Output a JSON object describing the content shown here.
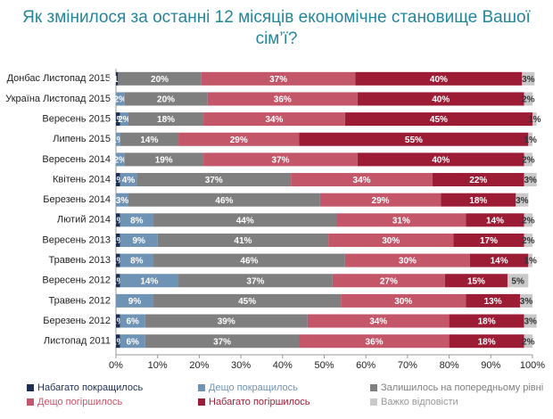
{
  "chart_data": {
    "type": "stacked-barh",
    "title": "Як змінилося за останні 12 місяців економічне становище Вашої сім’ї?",
    "categories": [
      "Донбас Листопад 2015",
      "Україна Листопад 2015",
      "Вересень 2015",
      "Липень 2015",
      "Вересень 2014",
      "Квітень 2014",
      "Березень 2014",
      "Лютий 2014",
      "Вересень 2013",
      "Травень 2013",
      "Вересень 2012",
      "Травень 2012",
      "Березень 2012",
      "Листопад 2011"
    ],
    "series": [
      {
        "name": "Набагато покращилось",
        "color": "#1c2f52",
        "values": [
          0.5,
          null,
          1,
          null,
          null,
          1,
          null,
          1,
          1,
          1,
          1,
          null,
          1,
          1
        ],
        "value_labels": [
          "<1%",
          null,
          "1%",
          null,
          null,
          "1%",
          null,
          "1%",
          "1%",
          "1%",
          "1%",
          null,
          "1%",
          "1%"
        ]
      },
      {
        "name": "Дещо покращилось",
        "color": "#6f93b5",
        "values": [
          null,
          2,
          2,
          1,
          2,
          4,
          3,
          8,
          9,
          8,
          14,
          9,
          6,
          6
        ],
        "value_labels": [
          null,
          "2%",
          "2%",
          "1%",
          "2%",
          "4%",
          "3%",
          "8%",
          "9%",
          "8%",
          "14%",
          "9%",
          "6%",
          "6%"
        ]
      },
      {
        "name": "Залишилось на попередньому рівні",
        "color": "#7f7f7f",
        "values": [
          20,
          20,
          18,
          14,
          19,
          37,
          46,
          44,
          41,
          46,
          37,
          45,
          39,
          37
        ],
        "value_labels": [
          "20%",
          "20%",
          "18%",
          "14%",
          "19%",
          "37%",
          "46%",
          "44%",
          "41%",
          "46%",
          "37%",
          "45%",
          "39%",
          "37%"
        ]
      },
      {
        "name": "Дещо погіршилось",
        "color": "#c4566a",
        "values": [
          37,
          36,
          34,
          29,
          37,
          34,
          29,
          31,
          30,
          30,
          27,
          30,
          34,
          36
        ],
        "value_labels": [
          "37%",
          "36%",
          "34%",
          "29%",
          "37%",
          "34%",
          "29%",
          "31%",
          "30%",
          "30%",
          "27%",
          "30%",
          "34%",
          "36%"
        ]
      },
      {
        "name": "Набагато погіршилось",
        "color": "#9c1c36",
        "values": [
          40,
          40,
          45,
          55,
          40,
          22,
          18,
          14,
          17,
          14,
          15,
          13,
          18,
          18
        ],
        "value_labels": [
          "40%",
          "40%",
          "45%",
          "55%",
          "40%",
          "22%",
          "18%",
          "14%",
          "17%",
          "14%",
          "15%",
          "13%",
          "18%",
          "18%"
        ]
      },
      {
        "name": "Важко відповісти",
        "color": "#c9c9c9",
        "values": [
          3,
          2,
          1,
          1,
          2,
          3,
          3,
          2,
          2,
          1,
          5,
          3,
          3,
          2
        ],
        "value_labels": [
          "3%",
          "2%",
          "1%",
          "1%",
          "2%",
          "3%",
          "3%",
          "2%",
          "2%",
          "1%",
          "5%",
          "3%",
          "3%",
          "2%"
        ]
      }
    ],
    "xlim": [
      0,
      100
    ],
    "xticks": [
      {
        "value": 0,
        "label": "0%"
      },
      {
        "value": 10,
        "label": "10%"
      },
      {
        "value": 20,
        "label": "20%"
      },
      {
        "value": 30,
        "label": "30%"
      },
      {
        "value": 40,
        "label": "40%"
      },
      {
        "value": 50,
        "label": "50%"
      },
      {
        "value": 60,
        "label": "60%"
      },
      {
        "value": 70,
        "label": "70%"
      },
      {
        "value": 80,
        "label": "80%"
      },
      {
        "value": 90,
        "label": "90%"
      },
      {
        "value": 100,
        "label": "100%"
      }
    ]
  }
}
